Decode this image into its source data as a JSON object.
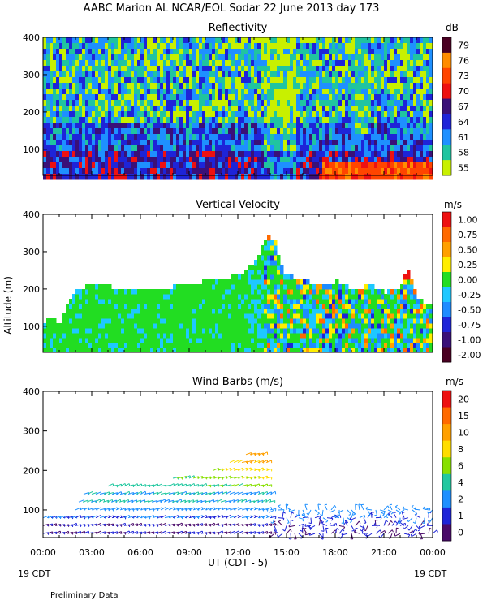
{
  "header": {
    "title": "AABC Marion AL NCAR/EOL Sodar  22 June 2013 day 173",
    "footer_left": "Preliminary Data",
    "date_left": "19 CDT",
    "date_right": "19 CDT",
    "xlabel": "UT  (CDT - 5)"
  },
  "chart_data": [
    {
      "type": "heatmap",
      "title": "Reflectivity",
      "ylabel": "",
      "units": "dB",
      "xlim": [
        0,
        24
      ],
      "ylim": [
        30,
        400
      ],
      "yticks": [
        "100",
        "200",
        "300",
        "400"
      ],
      "xticks": [
        "00:00",
        "03:00",
        "06:00",
        "09:00",
        "12:00",
        "15:00",
        "18:00",
        "21:00",
        "00:00"
      ],
      "colorbar": {
        "labels": [
          "79",
          "76",
          "73",
          "70",
          "67",
          "64",
          "61",
          "58",
          "55"
        ],
        "colors": [
          "#4a0022",
          "#ff8c00",
          "#ff4500",
          "#ee1111",
          "#3a1078",
          "#1e24d8",
          "#1e90ff",
          "#20c4a0",
          "#c8f000"
        ]
      },
      "visible_data_range": [
        0,
        24
      ]
    },
    {
      "type": "heatmap",
      "title": "Vertical Velocity",
      "ylabel": "Altitude (m)",
      "units": "m/s",
      "xlim": [
        0,
        24
      ],
      "ylim": [
        30,
        400
      ],
      "yticks": [
        "100",
        "200",
        "300",
        "400"
      ],
      "colorbar": {
        "labels": [
          "1.00",
          "0.75",
          "0.50",
          "0.25",
          "0.00",
          "-0.25",
          "-0.50",
          "-0.75",
          "-1.00",
          "-2.00"
        ],
        "colors": [
          "#ee1111",
          "#ff6a00",
          "#ffa000",
          "#ffee00",
          "#22dd22",
          "#1ec8ff",
          "#1e8cff",
          "#1e24d8",
          "#3a1078",
          "#4a0022"
        ]
      },
      "data_top_height_m": {
        "x": [
          0,
          0.4,
          1.0,
          1.5,
          2.0,
          2.5,
          4.0,
          6.0,
          8.0,
          10.0,
          12.0,
          13.0,
          13.5,
          13.8,
          14.2,
          14.8,
          16.0,
          17.0,
          18.0,
          19.0,
          20.0,
          21.0,
          22.0,
          22.3,
          23.0,
          23.5,
          24.0
        ],
        "y": [
          105,
          120,
          100,
          165,
          195,
          200,
          200,
          195,
          200,
          215,
          230,
          270,
          320,
          340,
          320,
          230,
          220,
          200,
          215,
          190,
          205,
          185,
          200,
          255,
          165,
          155,
          160
        ]
      }
    },
    {
      "type": "scatter",
      "title": "Wind Barbs (m/s)",
      "ylabel": "",
      "units": "m/s",
      "xlim": [
        0,
        24
      ],
      "ylim": [
        30,
        400
      ],
      "yticks": [
        "100",
        "200",
        "300",
        "400"
      ],
      "colorbar": {
        "labels": [
          "20",
          "15",
          "10",
          "8",
          "6",
          "4",
          "2",
          "1",
          "0"
        ],
        "colors": [
          "#ee1111",
          "#ff6a00",
          "#ffa000",
          "#ffdd00",
          "#88e000",
          "#22c8a0",
          "#1e90ff",
          "#1e24d8",
          "#4a0a6a"
        ]
      },
      "barb_layers": [
        {
          "height_m": 40,
          "x_start": 0,
          "x_end": 24,
          "speed": 1
        },
        {
          "height_m": 60,
          "x_start": 0,
          "x_end": 24,
          "speed": 1
        },
        {
          "height_m": 80,
          "x_start": 0,
          "x_end": 24,
          "speed": 2
        },
        {
          "height_m": 100,
          "x_start": 2,
          "x_end": 24,
          "speed": 3
        },
        {
          "height_m": 120,
          "x_start": 2.2,
          "x_end": 14,
          "speed": 4
        },
        {
          "height_m": 140,
          "x_start": 2.5,
          "x_end": 14,
          "speed": 4
        },
        {
          "height_m": 160,
          "x_start": 4,
          "x_end": 13.8,
          "speed": 5
        },
        {
          "height_m": 180,
          "x_start": 8,
          "x_end": 13.8,
          "speed": 6
        },
        {
          "height_m": 200,
          "x_start": 10.5,
          "x_end": 13.8,
          "speed": 7
        },
        {
          "height_m": 220,
          "x_start": 11.5,
          "x_end": 13.8,
          "speed": 8
        },
        {
          "height_m": 240,
          "x_start": 12.5,
          "x_end": 13.5,
          "speed": 9
        }
      ]
    }
  ]
}
